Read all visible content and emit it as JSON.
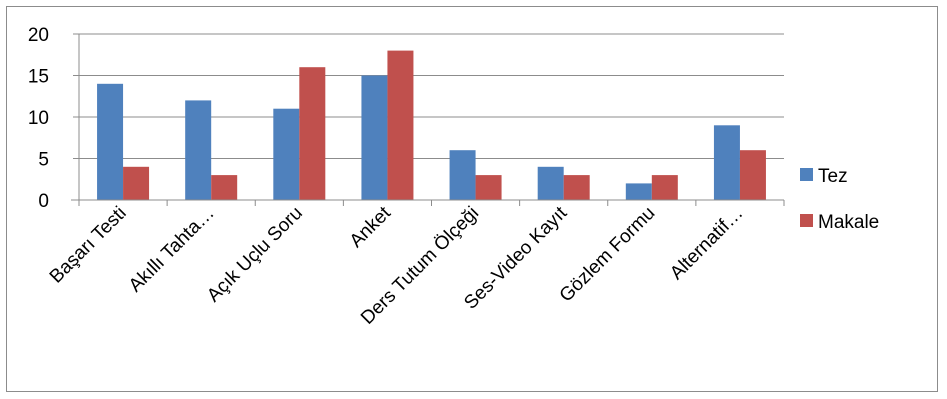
{
  "chart_data": {
    "type": "bar",
    "title": "",
    "xlabel": "",
    "ylabel": "",
    "categories": [
      "Başarı Testi",
      "Akıllı Tahta…",
      "Açık Uçlu Soru",
      "Anket",
      "Ders Tutum Ölçeği",
      "Ses-Video Kayıt",
      "Gözlem Formu",
      "Alternatif…"
    ],
    "series": [
      {
        "name": "Tez",
        "values": [
          14,
          12,
          11,
          15,
          6,
          4,
          2,
          9
        ],
        "color": "#4f81bd"
      },
      {
        "name": "Makale",
        "values": [
          4,
          3,
          16,
          18,
          3,
          3,
          3,
          6
        ],
        "color": "#c0504d"
      }
    ],
    "ylim": [
      0,
      20
    ],
    "yticks": [
      0,
      5,
      10,
      15,
      20
    ],
    "grid": true,
    "legend_position": "right"
  }
}
